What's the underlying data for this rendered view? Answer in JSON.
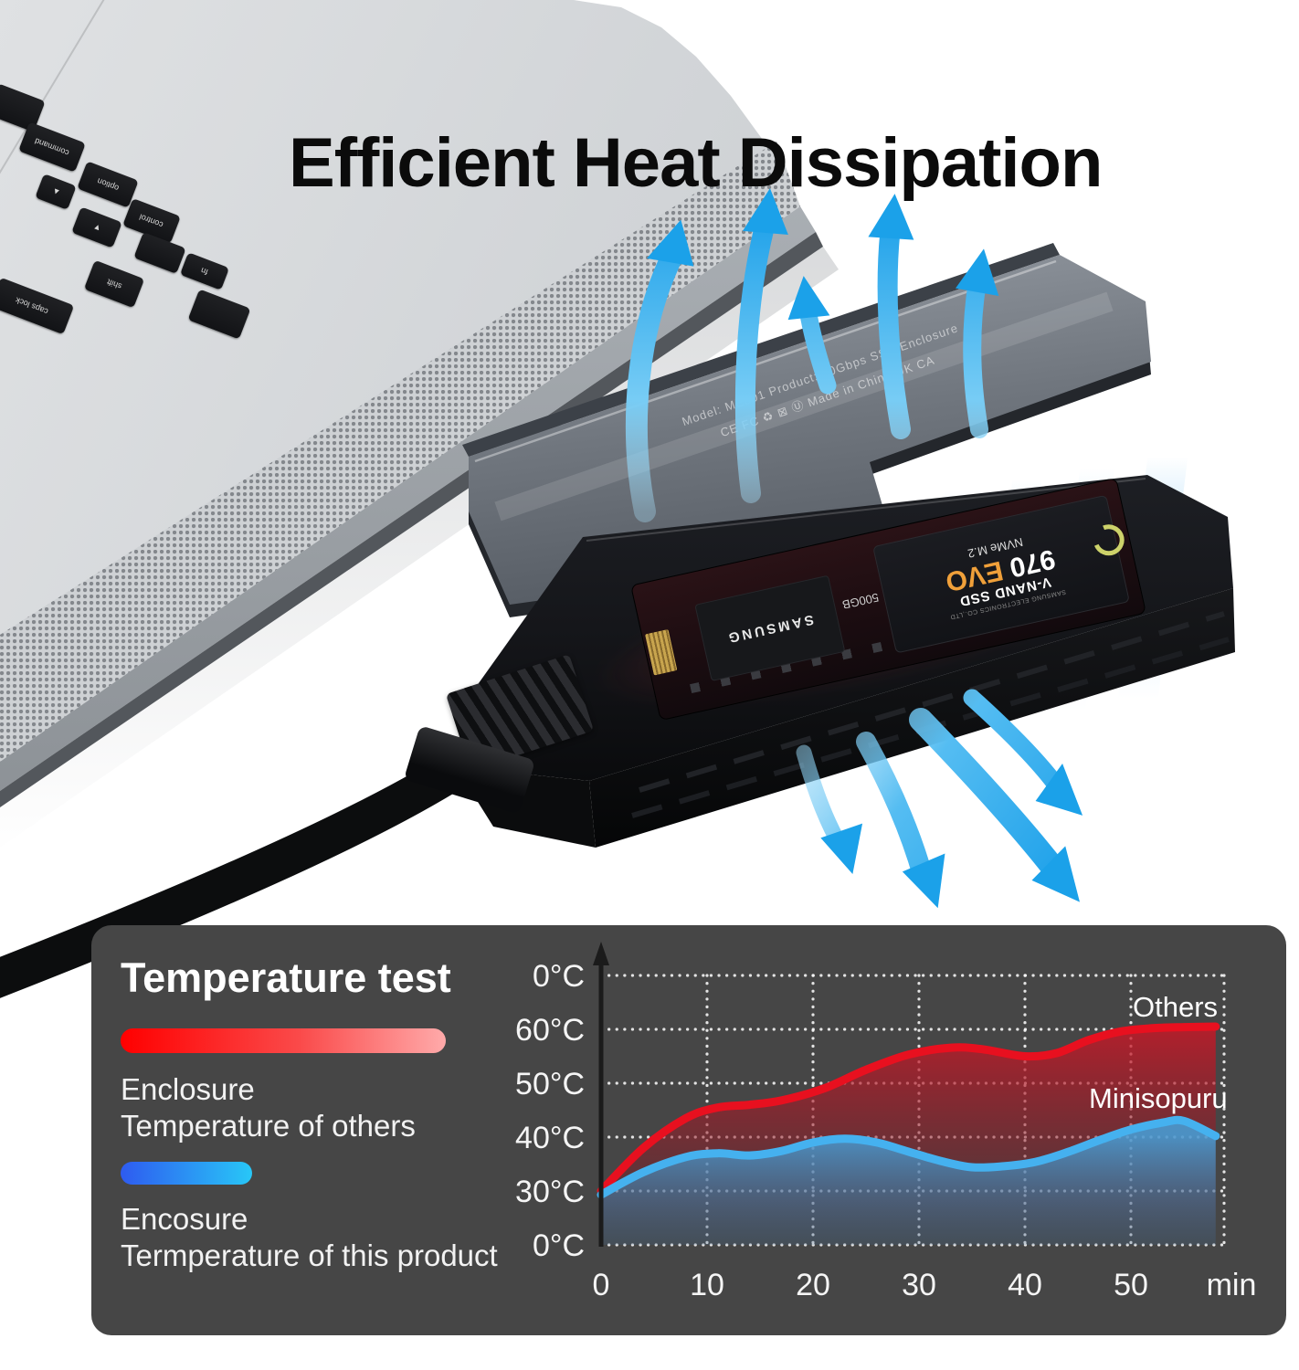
{
  "title": "Efficient Heat Dissipation",
  "laptop": {
    "keys": [
      "",
      "command",
      "option",
      "▲",
      "control",
      "▼",
      "",
      "shift",
      "fn",
      "caps lock",
      ""
    ]
  },
  "enclosure": {
    "lid_engraving_line1": "Model: ME801    Product: 10Gbps SSD Enclosure",
    "lid_engraving_line2": "CE   FC   ♻ ⊠ Ⓤ   Made in China   UK CA",
    "ssd": {
      "maker_line": "SAMSUNG ELECTRONICS CO.,LTD",
      "line1": "V-NAND SSD",
      "model_number": "970 ",
      "model_suffix": "EVO",
      "interface": "NVMe M.2",
      "capacity": "500GB",
      "chip_brand": "SAMSUNG"
    }
  },
  "panel": {
    "title": "Temperature test",
    "legend": [
      {
        "swatch": "red-gradient",
        "line1": "Enclosure",
        "line2": "Temperature of others"
      },
      {
        "swatch": "blue-gradient",
        "line1": "Encosure",
        "line2": "Termperature of this product"
      }
    ]
  },
  "chart_data": {
    "type": "area",
    "title": "Temperature test",
    "xlabel": "min",
    "ylabel": "",
    "x_ticks": [
      0,
      10,
      20,
      30,
      40,
      50
    ],
    "x_unit_label": "min",
    "y_tick_labels_top_to_bottom": [
      "0°C",
      "60°C",
      "50°C",
      "40°C",
      "30°C",
      "0°C"
    ],
    "grid": "dotted-white",
    "legend_position": "inline-labels",
    "note": "gridlines equally spaced; top and bottom both printed 0°C as in source",
    "series": [
      {
        "name": "Others",
        "color": "#e8101f",
        "points": [
          [
            0,
            30
          ],
          [
            4,
            38
          ],
          [
            8,
            43.5
          ],
          [
            11,
            45.5
          ],
          [
            14,
            46
          ],
          [
            17,
            46.8
          ],
          [
            21,
            49
          ],
          [
            25,
            52.5
          ],
          [
            29,
            55.3
          ],
          [
            33,
            56.6
          ],
          [
            36,
            56.3
          ],
          [
            40,
            55
          ],
          [
            43,
            55.6
          ],
          [
            46,
            58
          ],
          [
            49,
            59.6
          ],
          [
            52,
            60.2
          ],
          [
            55,
            60.4
          ],
          [
            58,
            60.5
          ]
        ]
      },
      {
        "name": "Minisopuru",
        "color": "#45b1ef",
        "points": [
          [
            0,
            29.3
          ],
          [
            4,
            33.5
          ],
          [
            8,
            36.3
          ],
          [
            11,
            37
          ],
          [
            14,
            36.6
          ],
          [
            17,
            37.4
          ],
          [
            20,
            39
          ],
          [
            23,
            39.7
          ],
          [
            26,
            39
          ],
          [
            29,
            37.3
          ],
          [
            32,
            35.6
          ],
          [
            35,
            34.4
          ],
          [
            38,
            34.6
          ],
          [
            41,
            35.4
          ],
          [
            44,
            37.2
          ],
          [
            47,
            39.4
          ],
          [
            50,
            41.4
          ],
          [
            53,
            42.7
          ],
          [
            55,
            43
          ],
          [
            58,
            40.2
          ]
        ]
      }
    ]
  },
  "colors": {
    "panel_bg": "#464646",
    "red_line": "#e8101f",
    "blue_line": "#45b1ef",
    "arrow_blue": "#29a3e8",
    "title_text": "#0b0b0b"
  }
}
